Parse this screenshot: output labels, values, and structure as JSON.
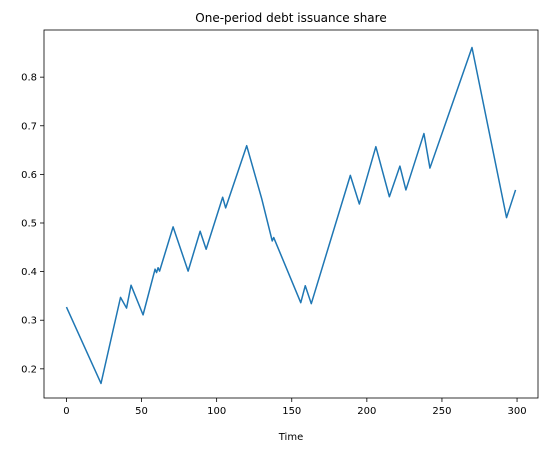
{
  "chart_data": {
    "type": "line",
    "title": "One-period debt issuance share",
    "x_label": "Time",
    "x": [
      0,
      23,
      36,
      40,
      43,
      51,
      59,
      60,
      61,
      62,
      71,
      81,
      89,
      93,
      104,
      106,
      120,
      130,
      137,
      138,
      156,
      159,
      163,
      189,
      195,
      206,
      215,
      222,
      226,
      238,
      242,
      270,
      293,
      299
    ],
    "series": [
      {
        "name": "One-period debt issuance share",
        "color": "#1f77b4",
        "values": [
          0.327,
          0.17,
          0.347,
          0.325,
          0.372,
          0.311,
          0.405,
          0.398,
          0.408,
          0.401,
          0.492,
          0.401,
          0.483,
          0.446,
          0.553,
          0.531,
          0.659,
          0.55,
          0.463,
          0.47,
          0.336,
          0.371,
          0.334,
          0.598,
          0.539,
          0.657,
          0.554,
          0.617,
          0.568,
          0.684,
          0.613,
          0.861,
          0.511,
          0.568
        ]
      }
    ],
    "xlim": [
      -14.95,
      313.95
    ],
    "ylim": [
      0.14,
      0.897
    ],
    "xticks": [
      0,
      50,
      100,
      150,
      200,
      250,
      300
    ],
    "yticks": [
      0.2,
      0.3,
      0.4,
      0.5,
      0.6,
      0.7,
      0.8
    ],
    "grid": false
  }
}
